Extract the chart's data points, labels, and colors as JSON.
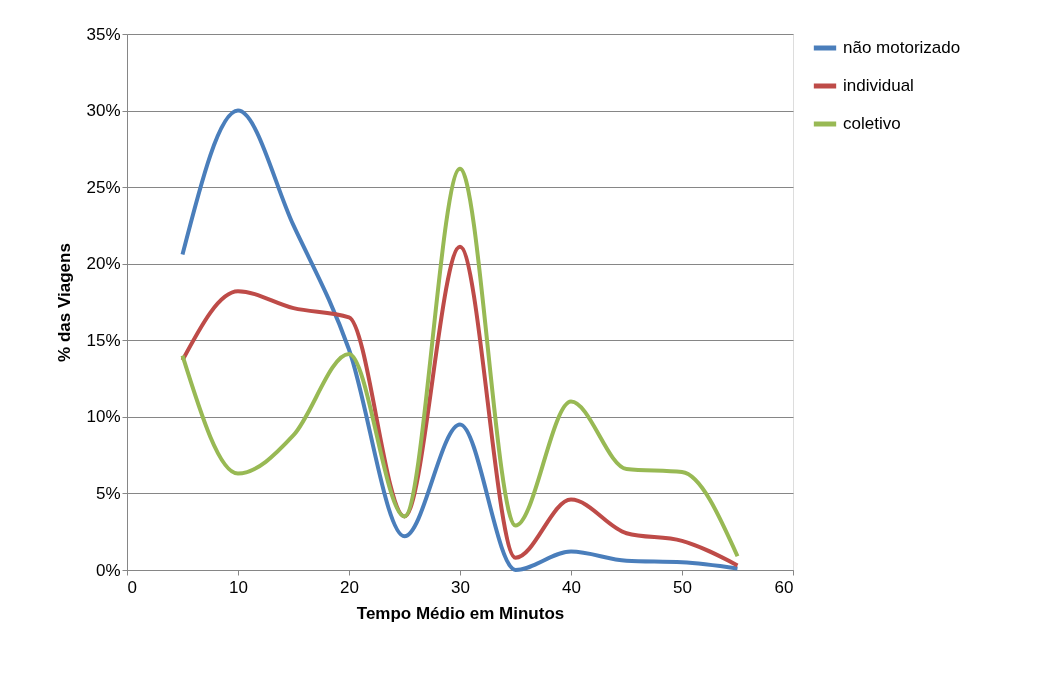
{
  "chart_data": {
    "type": "line",
    "xlabel": "Tempo Médio em Minutos",
    "ylabel": "% das Viagens",
    "x": [
      5,
      10,
      15,
      20,
      25,
      30,
      35,
      40,
      45,
      50,
      55
    ],
    "series": [
      {
        "name": "não motorizado",
        "color": "#4a7ebb",
        "values": [
          20.6,
          30.0,
          22.5,
          14.4,
          2.2,
          9.5,
          0.0,
          1.2,
          0.6,
          0.5,
          0.1
        ]
      },
      {
        "name": "individual",
        "color": "#be4b48",
        "values": [
          13.7,
          18.2,
          17.1,
          16.5,
          3.5,
          21.1,
          0.8,
          4.6,
          2.4,
          1.9,
          0.3
        ]
      },
      {
        "name": "coletivo",
        "color": "#98b954",
        "values": [
          14.0,
          6.3,
          8.8,
          14.1,
          3.5,
          26.2,
          2.9,
          11.0,
          6.6,
          6.4,
          0.9
        ]
      }
    ],
    "xlim": [
      0,
      60
    ],
    "xticks": [
      0,
      10,
      20,
      30,
      40,
      50,
      60
    ],
    "ylim": [
      0,
      35
    ],
    "yticks": [
      {
        "value": 0,
        "label": "0%"
      },
      {
        "value": 5,
        "label": "5%"
      },
      {
        "value": 10,
        "label": "10%"
      },
      {
        "value": 15,
        "label": "15%"
      },
      {
        "value": 20,
        "label": "20%"
      },
      {
        "value": 25,
        "label": "25%"
      },
      {
        "value": 30,
        "label": "30%"
      },
      {
        "value": 35,
        "label": "35%"
      }
    ],
    "grid": "y",
    "legend": "right",
    "marker": "none",
    "line_style": "solid"
  }
}
